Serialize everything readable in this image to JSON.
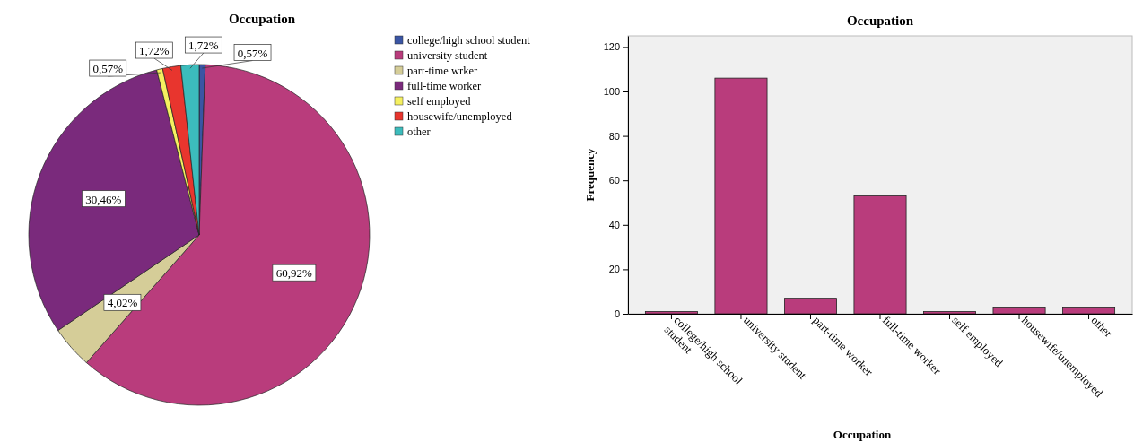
{
  "chart_data": [
    {
      "type": "pie",
      "title": "Occupation",
      "categories": [
        "college/high school student",
        "university student",
        "part-time wrker",
        "full-time worker",
        "self employed",
        "housewife/unemployed",
        "other"
      ],
      "values": [
        0.57,
        60.92,
        4.02,
        30.46,
        0.57,
        1.72,
        1.72
      ],
      "colors": [
        "#3a55a4",
        "#b93c7c",
        "#d5cd98",
        "#7a2a7c",
        "#f5f060",
        "#e8352e",
        "#3cbcbc"
      ],
      "value_labels": [
        "0,57%",
        "60,92%",
        "4,02%",
        "30,46%",
        "0,57%",
        "1,72%",
        "1,72%"
      ],
      "legend": "right"
    },
    {
      "type": "bar",
      "title": "Occupation",
      "categories": [
        "college/high school student",
        "university student",
        "part-time worker",
        "full-time worker",
        "self employed",
        "housewife/unemployed",
        "other"
      ],
      "values": [
        1,
        106,
        7,
        53,
        1,
        3,
        3
      ],
      "color": "#b93c7c",
      "ylim": [
        0,
        125
      ],
      "yticks": [
        0,
        20,
        40,
        60,
        80,
        100,
        120
      ],
      "xlabel": "Occupation",
      "ylabel": "Frequency",
      "grid": false
    }
  ]
}
